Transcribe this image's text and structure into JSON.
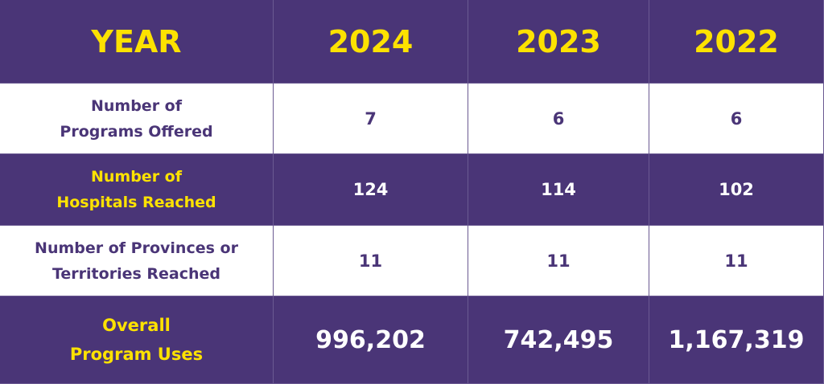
{
  "table": {
    "header": [
      "YEAR",
      "2024",
      "2023",
      "2022"
    ],
    "rows": [
      {
        "label": [
          "Number of",
          "Programs Offered"
        ],
        "values": [
          "7",
          "6",
          "6"
        ]
      },
      {
        "label": [
          "Number of",
          "Hospitals Reached"
        ],
        "values": [
          "124",
          "114",
          "102"
        ]
      },
      {
        "label": [
          "Number of Provinces or",
          "Territories Reached"
        ],
        "values": [
          "11",
          "11",
          "11"
        ]
      },
      {
        "label": [
          "Overall",
          "Program Uses"
        ],
        "values": [
          "996,202",
          "742,495",
          "1,167,319"
        ]
      }
    ]
  }
}
